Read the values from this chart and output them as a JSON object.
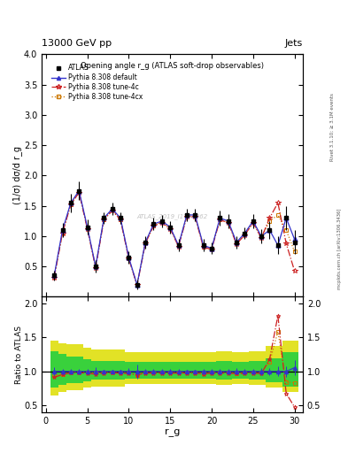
{
  "title_top": "13000 GeV pp",
  "title_right": "Jets",
  "plot_title": "Opening angle r_g (ATLAS soft-drop observables)",
  "ylabel_main": "(1/σ) dσ/d r_g",
  "ylabel_ratio": "Ratio to ATLAS",
  "xlabel": "r_g",
  "right_label1": "Rivet 3.1.10; ≥ 3.1M events",
  "right_label2": "mcplots.cern.ch [arXiv:1306.3436]",
  "watermark": "ATLAS_2019_I1772062",
  "legend_entries": [
    "ATLAS",
    "Pythia 8.308 default",
    "Pythia 8.308 tune-4c",
    "Pythia 8.308 tune-4cx"
  ],
  "x_data": [
    1,
    2,
    3,
    4,
    5,
    6,
    7,
    8,
    9,
    10,
    11,
    12,
    13,
    14,
    15,
    16,
    17,
    18,
    19,
    20,
    21,
    22,
    23,
    24,
    25,
    26,
    27,
    28,
    29,
    30
  ],
  "atlas_y": [
    0.35,
    1.1,
    1.55,
    1.75,
    1.15,
    0.5,
    1.3,
    1.45,
    1.3,
    0.65,
    0.2,
    0.9,
    1.2,
    1.25,
    1.15,
    0.85,
    1.35,
    1.35,
    0.85,
    0.8,
    1.3,
    1.25,
    0.9,
    1.05,
    1.25,
    1.0,
    1.1,
    0.85,
    1.3,
    0.9
  ],
  "atlas_yerr": [
    0.08,
    0.12,
    0.15,
    0.15,
    0.12,
    0.1,
    0.1,
    0.1,
    0.1,
    0.1,
    0.08,
    0.1,
    0.1,
    0.1,
    0.1,
    0.1,
    0.1,
    0.1,
    0.1,
    0.1,
    0.12,
    0.12,
    0.1,
    0.1,
    0.12,
    0.12,
    0.15,
    0.15,
    0.2,
    0.2
  ],
  "py_default_y": [
    0.35,
    1.1,
    1.55,
    1.75,
    1.15,
    0.5,
    1.3,
    1.45,
    1.3,
    0.65,
    0.2,
    0.9,
    1.2,
    1.25,
    1.15,
    0.85,
    1.35,
    1.35,
    0.85,
    0.8,
    1.3,
    1.25,
    0.9,
    1.05,
    1.25,
    1.0,
    1.1,
    0.85,
    1.3,
    0.95
  ],
  "py_default_yerr": [
    0.02,
    0.04,
    0.06,
    0.06,
    0.05,
    0.03,
    0.04,
    0.04,
    0.04,
    0.03,
    0.02,
    0.03,
    0.04,
    0.04,
    0.04,
    0.03,
    0.04,
    0.04,
    0.03,
    0.03,
    0.05,
    0.05,
    0.04,
    0.04,
    0.05,
    0.05,
    0.06,
    0.06,
    0.1,
    0.1
  ],
  "py_4c_y": [
    0.32,
    1.05,
    1.52,
    1.72,
    1.12,
    0.48,
    1.27,
    1.42,
    1.27,
    0.63,
    0.19,
    0.88,
    1.17,
    1.22,
    1.12,
    0.83,
    1.32,
    1.32,
    0.82,
    0.78,
    1.27,
    1.22,
    0.87,
    1.02,
    1.22,
    0.97,
    1.3,
    1.55,
    0.88,
    0.43
  ],
  "py_4cx_y": [
    0.33,
    1.06,
    1.53,
    1.73,
    1.13,
    0.49,
    1.28,
    1.43,
    1.28,
    0.64,
    0.19,
    0.89,
    1.18,
    1.23,
    1.13,
    0.84,
    1.33,
    1.33,
    0.83,
    0.79,
    1.28,
    1.23,
    0.88,
    1.03,
    1.23,
    0.98,
    1.25,
    1.35,
    1.1,
    0.75
  ],
  "ylim_main": [
    0,
    4
  ],
  "ylim_ratio": [
    0.4,
    2.1
  ],
  "xlim": [
    -0.5,
    31
  ],
  "color_default": "#3333cc",
  "color_4c": "#cc2222",
  "color_4cx": "#cc7700",
  "yticks_main": [
    0.5,
    1.0,
    1.5,
    2.0,
    2.5,
    3.0,
    3.5,
    4.0
  ],
  "yticks_ratio": [
    0.5,
    1.0,
    1.5,
    2.0
  ],
  "xticks": [
    0,
    5,
    10,
    15,
    20,
    25,
    30
  ],
  "band_yellow_lo": [
    0.65,
    0.7,
    0.72,
    0.72,
    0.76,
    0.78,
    0.78,
    0.78,
    0.78,
    0.82,
    0.82,
    0.82,
    0.82,
    0.82,
    0.82,
    0.82,
    0.82,
    0.82,
    0.82,
    0.82,
    0.8,
    0.8,
    0.82,
    0.82,
    0.8,
    0.8,
    0.76,
    0.76,
    0.7,
    0.7
  ],
  "band_yellow_hi": [
    1.45,
    1.42,
    1.4,
    1.4,
    1.35,
    1.32,
    1.32,
    1.32,
    1.32,
    1.28,
    1.28,
    1.28,
    1.28,
    1.28,
    1.28,
    1.28,
    1.28,
    1.28,
    1.28,
    1.28,
    1.3,
    1.3,
    1.28,
    1.28,
    1.3,
    1.3,
    1.38,
    1.38,
    1.45,
    1.45
  ],
  "band_green_lo": [
    0.76,
    0.8,
    0.83,
    0.83,
    0.86,
    0.88,
    0.88,
    0.88,
    0.88,
    0.9,
    0.9,
    0.9,
    0.9,
    0.9,
    0.9,
    0.9,
    0.9,
    0.9,
    0.9,
    0.9,
    0.88,
    0.88,
    0.9,
    0.9,
    0.88,
    0.88,
    0.84,
    0.84,
    0.78,
    0.78
  ],
  "band_green_hi": [
    1.3,
    1.26,
    1.22,
    1.22,
    1.18,
    1.16,
    1.16,
    1.16,
    1.16,
    1.14,
    1.14,
    1.14,
    1.14,
    1.14,
    1.14,
    1.14,
    1.14,
    1.14,
    1.14,
    1.14,
    1.16,
    1.16,
    1.14,
    1.14,
    1.16,
    1.16,
    1.2,
    1.2,
    1.28,
    1.28
  ]
}
